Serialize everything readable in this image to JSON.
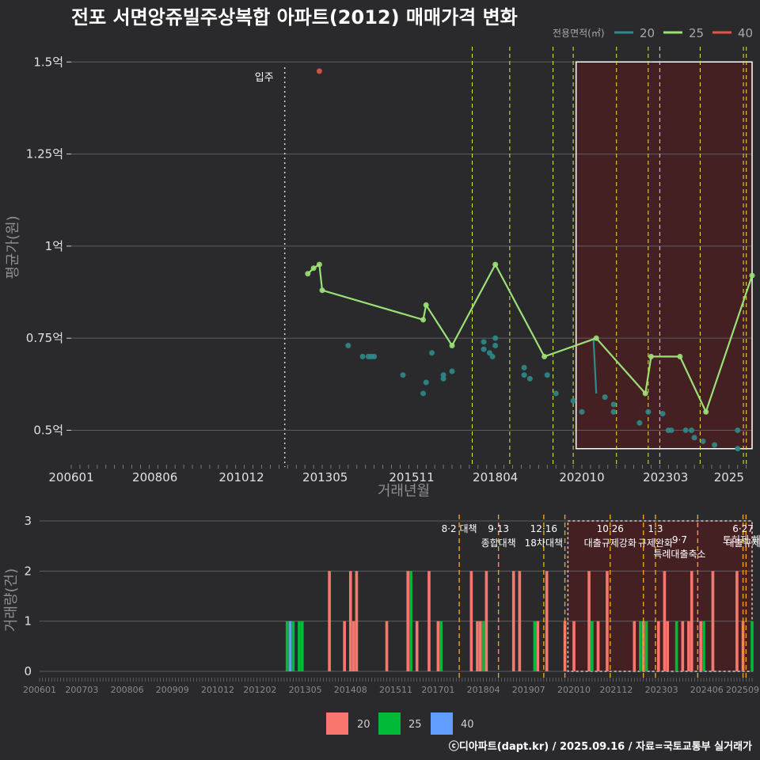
{
  "colors": {
    "background": "#2a2a2c",
    "grid": "#5e5e5e",
    "series_20": "#2f8a8a",
    "series_25": "#9be077",
    "series_40": "#e0554a",
    "bar_20": "#f8766d",
    "bar_25": "#00ba38",
    "bar_40": "#619cff",
    "highlight_fill": "#4a1f22",
    "policy_line_top": "#e8e844",
    "policy_line_bottom": "#f0a020"
  },
  "chart_data": [
    {
      "type": "line",
      "title": "전포 서면앙쥬빌주상복합 아파트(2012) 매매가격 변화",
      "xlabel": "거래년월",
      "ylabel": "평균가(원)",
      "x_ticks": [
        "200601",
        "200806",
        "201012",
        "201305",
        "201511",
        "201804",
        "202010",
        "202303",
        "2025"
      ],
      "y_ticks": [
        "0.5억",
        "0.75억",
        "1억",
        "1.25억",
        "1.5억"
      ],
      "y_tick_values": [
        0.5,
        0.75,
        1.0,
        1.25,
        1.5
      ],
      "ylim": [
        0.4,
        1.55
      ],
      "xlim": [
        "2006-01",
        "2025-09"
      ],
      "legend": {
        "title": "전용면적(㎡)",
        "position": "top-right",
        "entries": [
          "20",
          "25",
          "40"
        ]
      },
      "completion_label": "입주",
      "completion_date": "2012-03",
      "series": [
        {
          "name": "20",
          "style": "points",
          "points": [
            [
              "2014-01",
              0.73
            ],
            [
              "2014-06",
              0.7
            ],
            [
              "2014-08",
              0.7
            ],
            [
              "2014-09",
              0.7
            ],
            [
              "2014-10",
              0.7
            ],
            [
              "2015-08",
              0.65
            ],
            [
              "2016-03",
              0.6
            ],
            [
              "2016-04",
              0.63
            ],
            [
              "2016-06",
              0.71
            ],
            [
              "2016-10",
              0.65
            ],
            [
              "2016-10",
              0.64
            ],
            [
              "2017-01",
              0.66
            ],
            [
              "2017-12",
              0.74
            ],
            [
              "2017-12",
              0.72
            ],
            [
              "2018-02",
              0.71
            ],
            [
              "2018-03",
              0.7
            ],
            [
              "2018-04",
              0.73
            ],
            [
              "2018-04",
              0.75
            ],
            [
              "2019-02",
              0.67
            ],
            [
              "2019-02",
              0.65
            ],
            [
              "2019-04",
              0.64
            ],
            [
              "2019-10",
              0.65
            ],
            [
              "2020-01",
              0.6
            ],
            [
              "2020-07",
              0.58
            ],
            [
              "2020-10",
              0.55
            ],
            [
              "2021-06",
              0.59
            ],
            [
              "2021-09",
              0.57
            ],
            [
              "2021-09",
              0.55
            ],
            [
              "2022-06",
              0.52
            ],
            [
              "2022-09",
              0.55
            ],
            [
              "2023-02",
              0.545
            ],
            [
              "2023-04",
              0.5
            ],
            [
              "2023-05",
              0.5
            ],
            [
              "2023-10",
              0.5
            ],
            [
              "2023-12",
              0.5
            ],
            [
              "2024-01",
              0.48
            ],
            [
              "2024-04",
              0.47
            ],
            [
              "2024-08",
              0.46
            ],
            [
              "2025-04",
              0.45
            ],
            [
              "2025-04",
              0.5
            ]
          ],
          "line_points": [
            [
              "2021-02",
              0.75
            ],
            [
              "2021-03",
              0.6
            ]
          ]
        },
        {
          "name": "25",
          "style": "line+points",
          "points": [
            [
              "2012-11",
              0.925
            ],
            [
              "2013-01",
              0.94
            ],
            [
              "2013-03",
              0.95
            ],
            [
              "2013-04",
              0.88
            ],
            [
              "2016-03",
              0.8
            ],
            [
              "2016-04",
              0.84
            ],
            [
              "2017-01",
              0.73
            ],
            [
              "2018-04",
              0.95
            ],
            [
              "2019-09",
              0.7
            ],
            [
              "2021-03",
              0.75
            ],
            [
              "2022-08",
              0.6
            ],
            [
              "2022-10",
              0.7
            ],
            [
              "2023-08",
              0.7
            ],
            [
              "2024-05",
              0.55
            ],
            [
              "2025-09",
              0.92
            ]
          ]
        },
        {
          "name": "40",
          "style": "points",
          "points": [
            [
              "2013-03",
              1.475
            ]
          ]
        }
      ],
      "policy_lines": [
        "2017-08",
        "2018-09",
        "2019-12",
        "2020-07",
        "2021-10",
        "2022-09",
        "2023-01",
        "2024-03",
        "2025-06",
        "2025-07"
      ]
    },
    {
      "type": "bar",
      "ylabel": "거래량(건)",
      "x_ticks": [
        "200601",
        "200703",
        "200806",
        "200909",
        "201012",
        "201202",
        "201305",
        "201408",
        "201511",
        "201701",
        "201804",
        "201907",
        "202010",
        "202112",
        "202303",
        "202406",
        "202509"
      ],
      "y_ticks": [
        "0",
        "1",
        "2",
        "3"
      ],
      "ylim": [
        0,
        3
      ],
      "legend": {
        "position": "bottom",
        "entries": [
          "20",
          "25",
          "40"
        ]
      },
      "policy_labels": [
        {
          "date": "2017-08",
          "lines": [
            "8·2 대책"
          ]
        },
        {
          "date": "2018-09",
          "lines": [
            "9·13",
            "종합대책"
          ]
        },
        {
          "date": "2019-12",
          "lines": [
            "12·16",
            "18차대책"
          ]
        },
        {
          "date": "2021-10",
          "lines": [
            "10·26",
            "대출규제강화"
          ]
        },
        {
          "date": "2023-01",
          "lines": [
            "1·3",
            "규제완화"
          ]
        },
        {
          "date": "2023-09",
          "lines": [
            "9·7",
            "특례대출축소"
          ]
        },
        {
          "date": "2025-06",
          "lines": [
            "6·27",
            "대출규제"
          ]
        },
        {
          "date": "2025-07",
          "lines": [
            "토허제 해제"
          ]
        }
      ],
      "bars": [
        {
          "date": "2012-11",
          "size": "25",
          "count": 1
        },
        {
          "date": "2012-12",
          "size": "40",
          "count": 1
        },
        {
          "date": "2013-01",
          "size": "25",
          "count": 1
        },
        {
          "date": "2013-03",
          "size": "25",
          "count": 1
        },
        {
          "date": "2013-04",
          "size": "25",
          "count": 1
        },
        {
          "date": "2014-01",
          "size": "20",
          "count": 2
        },
        {
          "date": "2014-06",
          "size": "20",
          "count": 1
        },
        {
          "date": "2014-08",
          "size": "20",
          "count": 2
        },
        {
          "date": "2014-09",
          "size": "20",
          "count": 1
        },
        {
          "date": "2014-10",
          "size": "20",
          "count": 2
        },
        {
          "date": "2015-08",
          "size": "20",
          "count": 1
        },
        {
          "date": "2016-03",
          "size": "20",
          "count": 2
        },
        {
          "date": "2016-04",
          "size": "25",
          "count": 2
        },
        {
          "date": "2016-06",
          "size": "20",
          "count": 1
        },
        {
          "date": "2016-10",
          "size": "20",
          "count": 2
        },
        {
          "date": "2017-01",
          "size": "20",
          "count": 1
        },
        {
          "date": "2017-02",
          "size": "25",
          "count": 1
        },
        {
          "date": "2017-12",
          "size": "20",
          "count": 2
        },
        {
          "date": "2018-02",
          "size": "20",
          "count": 1
        },
        {
          "date": "2018-03",
          "size": "20",
          "count": 1
        },
        {
          "date": "2018-04",
          "size": "25",
          "count": 1
        },
        {
          "date": "2018-05",
          "size": "20",
          "count": 2
        },
        {
          "date": "2019-02",
          "size": "20",
          "count": 2
        },
        {
          "date": "2019-04",
          "size": "20",
          "count": 2
        },
        {
          "date": "2019-09",
          "size": "25",
          "count": 1
        },
        {
          "date": "2019-10",
          "size": "20",
          "count": 1
        },
        {
          "date": "2020-01",
          "size": "20",
          "count": 2
        },
        {
          "date": "2020-07",
          "size": "20",
          "count": 1
        },
        {
          "date": "2020-10",
          "size": "20",
          "count": 1
        },
        {
          "date": "2021-03",
          "size": "20",
          "count": 2
        },
        {
          "date": "2021-04",
          "size": "25",
          "count": 1
        },
        {
          "date": "2021-06",
          "size": "20",
          "count": 1
        },
        {
          "date": "2021-09",
          "size": "20",
          "count": 2
        },
        {
          "date": "2022-06",
          "size": "20",
          "count": 1
        },
        {
          "date": "2022-08",
          "size": "25",
          "count": 1
        },
        {
          "date": "2022-09",
          "size": "20",
          "count": 1
        },
        {
          "date": "2022-10",
          "size": "25",
          "count": 1
        },
        {
          "date": "2023-02",
          "size": "20",
          "count": 1
        },
        {
          "date": "2023-04",
          "size": "20",
          "count": 2
        },
        {
          "date": "2023-05",
          "size": "20",
          "count": 1
        },
        {
          "date": "2023-08",
          "size": "25",
          "count": 1
        },
        {
          "date": "2023-10",
          "size": "20",
          "count": 1
        },
        {
          "date": "2023-12",
          "size": "20",
          "count": 1
        },
        {
          "date": "2024-01",
          "size": "20",
          "count": 2
        },
        {
          "date": "2024-04",
          "size": "20",
          "count": 1
        },
        {
          "date": "2024-05",
          "size": "25",
          "count": 1
        },
        {
          "date": "2024-08",
          "size": "20",
          "count": 2
        },
        {
          "date": "2025-04",
          "size": "20",
          "count": 2
        },
        {
          "date": "2025-06",
          "size": "20",
          "count": 1
        },
        {
          "date": "2025-09",
          "size": "25",
          "count": 1
        }
      ]
    }
  ],
  "credit": "ⓒ디아파트(dapt.kr) / 2025.09.16 / 자료=국토교통부 실거래가"
}
